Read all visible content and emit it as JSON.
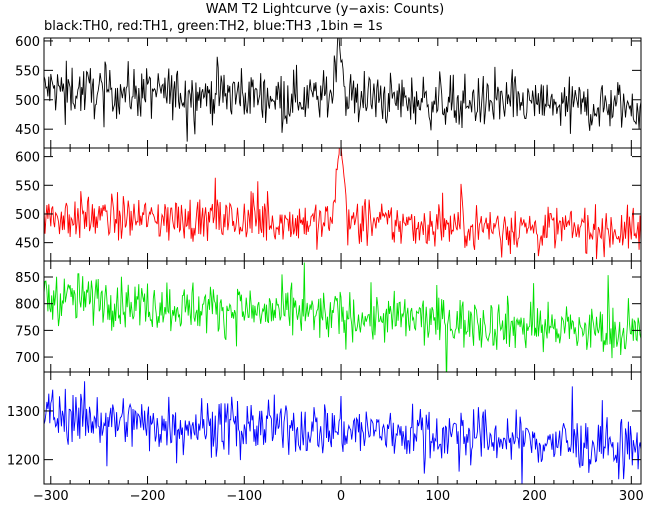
{
  "header": {
    "title": "WAM T2 Lightcurve (y−axis: Counts)",
    "subtitle": "black:TH0, red:TH1, green:TH2, blue:TH3 ,1bin = 1s"
  },
  "chart_data": {
    "type": "line",
    "title": "WAM T2 Lightcurve (y−axis: Counts)",
    "subtitle": "black:TH0, red:TH1, green:TH2, blue:TH3 ,1bin = 1s",
    "x_range": [
      -307,
      310
    ],
    "x_ticks": [
      -300,
      -200,
      -100,
      0,
      100,
      200,
      300
    ],
    "x_tick_labels": [
      "−300",
      "−200",
      "−100",
      "0",
      "100",
      "200",
      "300"
    ],
    "bin_seconds": 1,
    "panels": [
      {
        "series": "TH0",
        "color": "#000000",
        "ylim": [
          418,
          605
        ],
        "y_ticks": [
          450,
          500,
          550,
          600
        ],
        "trend": [
          [
            -307,
            518
          ],
          [
            -200,
            512
          ],
          [
            -100,
            508
          ],
          [
            -20,
            505
          ],
          [
            50,
            500
          ],
          [
            200,
            492
          ],
          [
            310,
            488
          ]
        ],
        "noise": 22,
        "burst": [
          [
            -8,
            530
          ],
          [
            -5,
            575
          ],
          [
            -3,
            610
          ],
          [
            0,
            590
          ],
          [
            2,
            560
          ],
          [
            5,
            515
          ]
        ]
      },
      {
        "series": "TH1",
        "color": "#ff0000",
        "ylim": [
          418,
          615
        ],
        "y_ticks": [
          450,
          500,
          550,
          600
        ],
        "trend": [
          [
            -307,
            495
          ],
          [
            -200,
            492
          ],
          [
            -100,
            488
          ],
          [
            0,
            486
          ],
          [
            100,
            480
          ],
          [
            200,
            476
          ],
          [
            310,
            470
          ]
        ],
        "noise": 20,
        "burst": [
          [
            -8,
            510
          ],
          [
            -5,
            560
          ],
          [
            -3,
            615
          ],
          [
            0,
            600
          ],
          [
            3,
            560
          ],
          [
            6,
            505
          ]
        ]
      },
      {
        "series": "TH2",
        "color": "#00e000",
        "ylim": [
          672,
          880
        ],
        "y_ticks": [
          700,
          750,
          800,
          850
        ],
        "trend": [
          [
            -307,
            812
          ],
          [
            -250,
            808
          ],
          [
            -200,
            798
          ],
          [
            -100,
            787
          ],
          [
            0,
            776
          ],
          [
            100,
            768
          ],
          [
            200,
            758
          ],
          [
            310,
            742
          ]
        ],
        "noise": 24,
        "burst": []
      },
      {
        "series": "TH3",
        "color": "#0000ff",
        "ylim": [
          1150,
          1380
        ],
        "y_ticks": [
          1200,
          1300
        ],
        "trend": [
          [
            -307,
            1295
          ],
          [
            -250,
            1282
          ],
          [
            -200,
            1274
          ],
          [
            -100,
            1268
          ],
          [
            0,
            1262
          ],
          [
            100,
            1252
          ],
          [
            200,
            1238
          ],
          [
            310,
            1222
          ]
        ],
        "noise": 28,
        "burst": []
      }
    ]
  }
}
